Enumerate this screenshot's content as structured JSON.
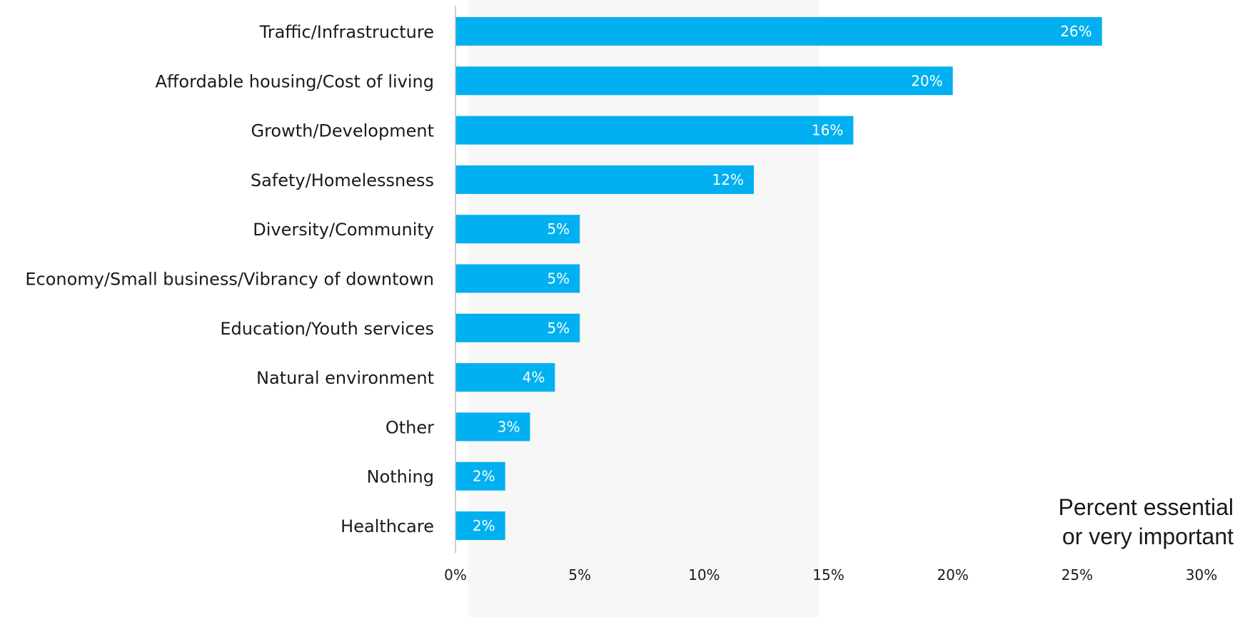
{
  "chart_data": {
    "type": "bar",
    "orientation": "horizontal",
    "categories": [
      "Traffic/Infrastructure",
      "Affordable housing/Cost of living",
      "Growth/Development",
      "Safety/Homelessness",
      "Diversity/Community",
      "Economy/Small business/Vibrancy of downtown",
      "Education/Youth services",
      "Natural environment",
      "Other",
      "Nothing",
      "Healthcare"
    ],
    "values": [
      26,
      20,
      16,
      12,
      5,
      5,
      5,
      4,
      3,
      2,
      2
    ],
    "data_labels": [
      "26%",
      "20%",
      "16%",
      "12%",
      "5%",
      "5%",
      "5%",
      "4%",
      "3%",
      "2%",
      "2%"
    ],
    "x_ticks": [
      0,
      5,
      10,
      15,
      20,
      25,
      30
    ],
    "x_tick_labels": [
      "0%",
      "5%",
      "10%",
      "15%",
      "20%",
      "25%",
      "30%"
    ],
    "xlim": [
      0,
      30
    ],
    "title": "",
    "xlabel": "",
    "ylabel": "",
    "grid": false,
    "legend": "none",
    "annotation": [
      "Percent essential",
      "or very important"
    ],
    "colors": {
      "bar": "#00b0f0",
      "shaded_band": "#f7f7f7",
      "axis": "#bfbfbf",
      "text": "#1a1a1a"
    }
  }
}
